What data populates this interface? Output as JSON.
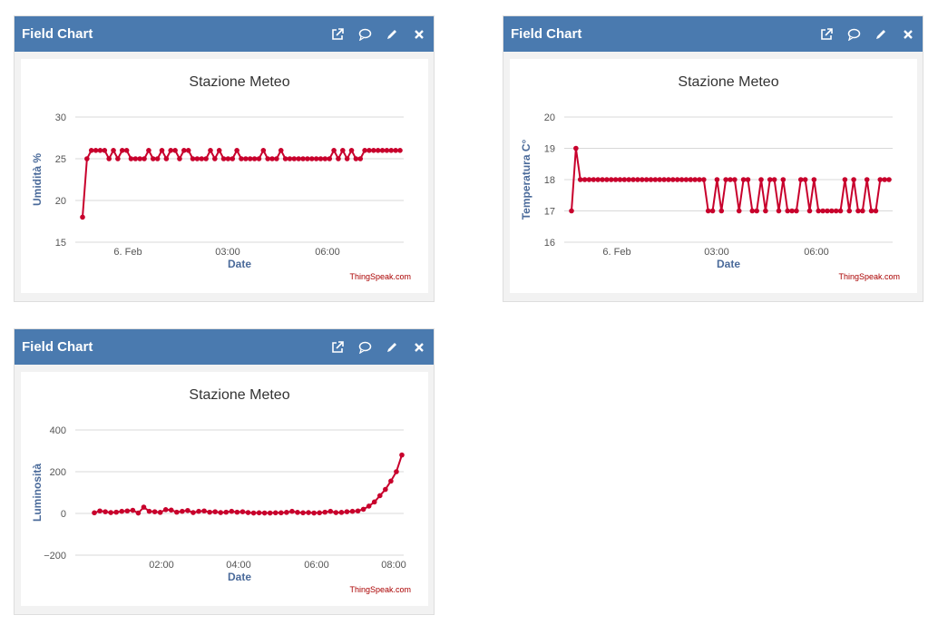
{
  "widgets": [
    {
      "header": "Field Chart",
      "icons": [
        "external-link-icon",
        "comment-icon",
        "pencil-icon",
        "close-icon"
      ],
      "credit": "ThingSpeak.com",
      "chart_data": {
        "type": "line",
        "title": "Stazione Meteo",
        "xlabel": "Date",
        "ylabel": "Umidità %",
        "ylim": [
          15,
          30
        ],
        "yticks": [
          "15",
          "20",
          "25",
          "30"
        ],
        "xticks": [
          "6. Feb",
          "03:00",
          "06:00"
        ],
        "color": "#c8002c",
        "series": [
          {
            "values": [
              18,
              25,
              26,
              26,
              26,
              26,
              25,
              26,
              25,
              26,
              26,
              25,
              25,
              25,
              25,
              26,
              25,
              25,
              26,
              25,
              26,
              26,
              25,
              26,
              26,
              25,
              25,
              25,
              25,
              26,
              25,
              26,
              25,
              25,
              25,
              26,
              25,
              25,
              25,
              25,
              25,
              26,
              25,
              25,
              25,
              26,
              25,
              25,
              25,
              25,
              25,
              25,
              25,
              25,
              25,
              25,
              25,
              26,
              25,
              26,
              25,
              26,
              25,
              25,
              26,
              26,
              26,
              26,
              26,
              26,
              26,
              26,
              26
            ]
          }
        ]
      }
    },
    {
      "header": "Field Chart",
      "icons": [
        "external-link-icon",
        "comment-icon",
        "pencil-icon",
        "close-icon"
      ],
      "credit": "ThingSpeak.com",
      "chart_data": {
        "type": "line",
        "title": "Stazione Meteo",
        "xlabel": "Date",
        "ylabel": "Temperatura C°",
        "ylim": [
          16,
          20
        ],
        "yticks": [
          "16",
          "17",
          "18",
          "19",
          "20"
        ],
        "xticks": [
          "6. Feb",
          "03:00",
          "06:00"
        ],
        "color": "#c8002c",
        "series": [
          {
            "values": [
              17,
              19,
              18,
              18,
              18,
              18,
              18,
              18,
              18,
              18,
              18,
              18,
              18,
              18,
              18,
              18,
              18,
              18,
              18,
              18,
              18,
              18,
              18,
              18,
              18,
              18,
              18,
              18,
              18,
              18,
              18,
              17,
              17,
              18,
              17,
              18,
              18,
              18,
              17,
              18,
              18,
              17,
              17,
              18,
              17,
              18,
              18,
              17,
              18,
              17,
              17,
              17,
              18,
              18,
              17,
              18,
              17,
              17,
              17,
              17,
              17,
              17,
              18,
              17,
              18,
              17,
              17,
              18,
              17,
              17,
              18,
              18,
              18
            ]
          }
        ]
      }
    },
    {
      "header": "Field Chart",
      "icons": [
        "external-link-icon",
        "comment-icon",
        "pencil-icon",
        "close-icon"
      ],
      "credit": "ThingSpeak.com",
      "chart_data": {
        "type": "line",
        "title": "Stazione Meteo",
        "xlabel": "Date",
        "ylabel": "Luminosità",
        "ylim": [
          -200,
          400
        ],
        "yticks": [
          "−200",
          "0",
          "200",
          "400"
        ],
        "xticks": [
          "02:00",
          "04:00",
          "06:00",
          "08:00"
        ],
        "color": "#c8002c",
        "series": [
          {
            "values": [
              3,
              12,
              8,
              4,
              6,
              10,
              12,
              15,
              2,
              30,
              10,
              8,
              5,
              18,
              16,
              6,
              10,
              14,
              4,
              10,
              12,
              6,
              8,
              4,
              6,
              10,
              6,
              8,
              4,
              2,
              3,
              2,
              2,
              3,
              3,
              5,
              10,
              5,
              3,
              4,
              2,
              3,
              6,
              10,
              4,
              5,
              8,
              10,
              12,
              20,
              35,
              55,
              85,
              115,
              155,
              200,
              280
            ]
          }
        ]
      }
    }
  ]
}
